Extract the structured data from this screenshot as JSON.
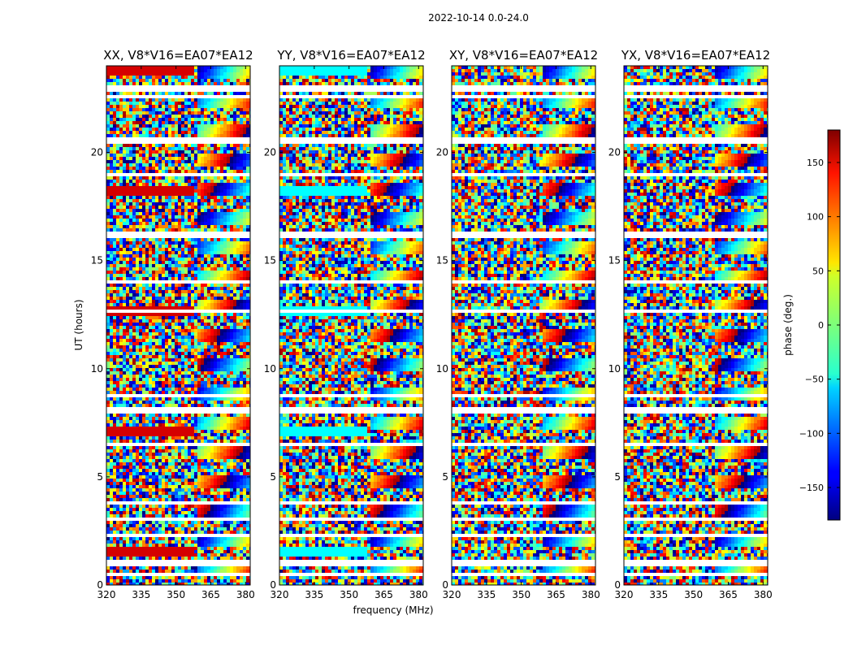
{
  "chart_data": {
    "type": "heatmap",
    "title": "2022-10-14 0.0-24.0",
    "xlabel": "frequency (MHz)",
    "ylabel": "UT (hours)",
    "xlim": [
      320,
      382
    ],
    "ylim": [
      0,
      24
    ],
    "x_ticks": [
      "320",
      "335",
      "350",
      "365",
      "380"
    ],
    "y_ticks": [
      "0",
      "5",
      "10",
      "15",
      "20"
    ],
    "panels": [
      {
        "title": "XX, V8*V16=EA07*EA12"
      },
      {
        "title": "YY, V8*V16=EA07*EA12"
      },
      {
        "title": "XY, V8*V16=EA07*EA12"
      },
      {
        "title": "YX, V8*V16=EA07*EA12"
      }
    ],
    "colorbar": {
      "label": "phase (deg.)",
      "range": [
        -180,
        180
      ],
      "ticks": [
        "150",
        "100",
        "50",
        "0",
        "−50",
        "−100",
        "−150"
      ],
      "colormap": "jet"
    }
  }
}
